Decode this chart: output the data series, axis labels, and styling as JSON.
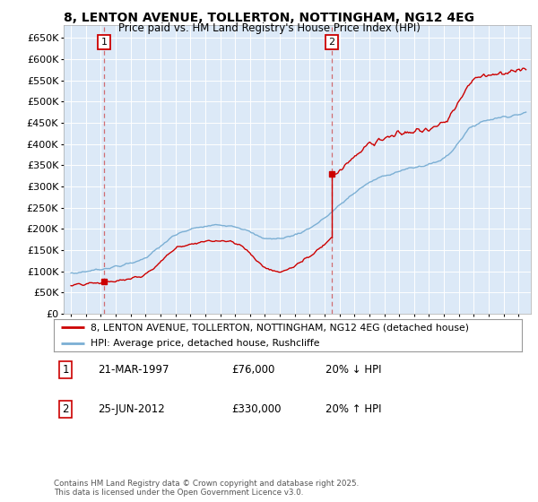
{
  "title": "8, LENTON AVENUE, TOLLERTON, NOTTINGHAM, NG12 4EG",
  "subtitle": "Price paid vs. HM Land Registry's House Price Index (HPI)",
  "legend_line1": "8, LENTON AVENUE, TOLLERTON, NOTTINGHAM, NG12 4EG (detached house)",
  "legend_line2": "HPI: Average price, detached house, Rushcliffe",
  "annotation1_label": "1",
  "annotation1_date": "21-MAR-1997",
  "annotation1_price": "£76,000",
  "annotation1_hpi": "20% ↓ HPI",
  "annotation2_label": "2",
  "annotation2_date": "25-JUN-2012",
  "annotation2_price": "£330,000",
  "annotation2_hpi": "20% ↑ HPI",
  "footnote": "Contains HM Land Registry data © Crown copyright and database right 2025.\nThis data is licensed under the Open Government Licence v3.0.",
  "sale1_year": 1997.22,
  "sale1_price": 76000,
  "sale2_year": 2012.48,
  "sale2_price": 330000,
  "hpi_color": "#7bafd4",
  "price_color": "#cc0000",
  "dashed_color": "#cc4444",
  "plot_bg_color": "#dce9f7",
  "ylim_min": 0,
  "ylim_max": 680000,
  "xlim_min": 1994.5,
  "xlim_max": 2025.8
}
